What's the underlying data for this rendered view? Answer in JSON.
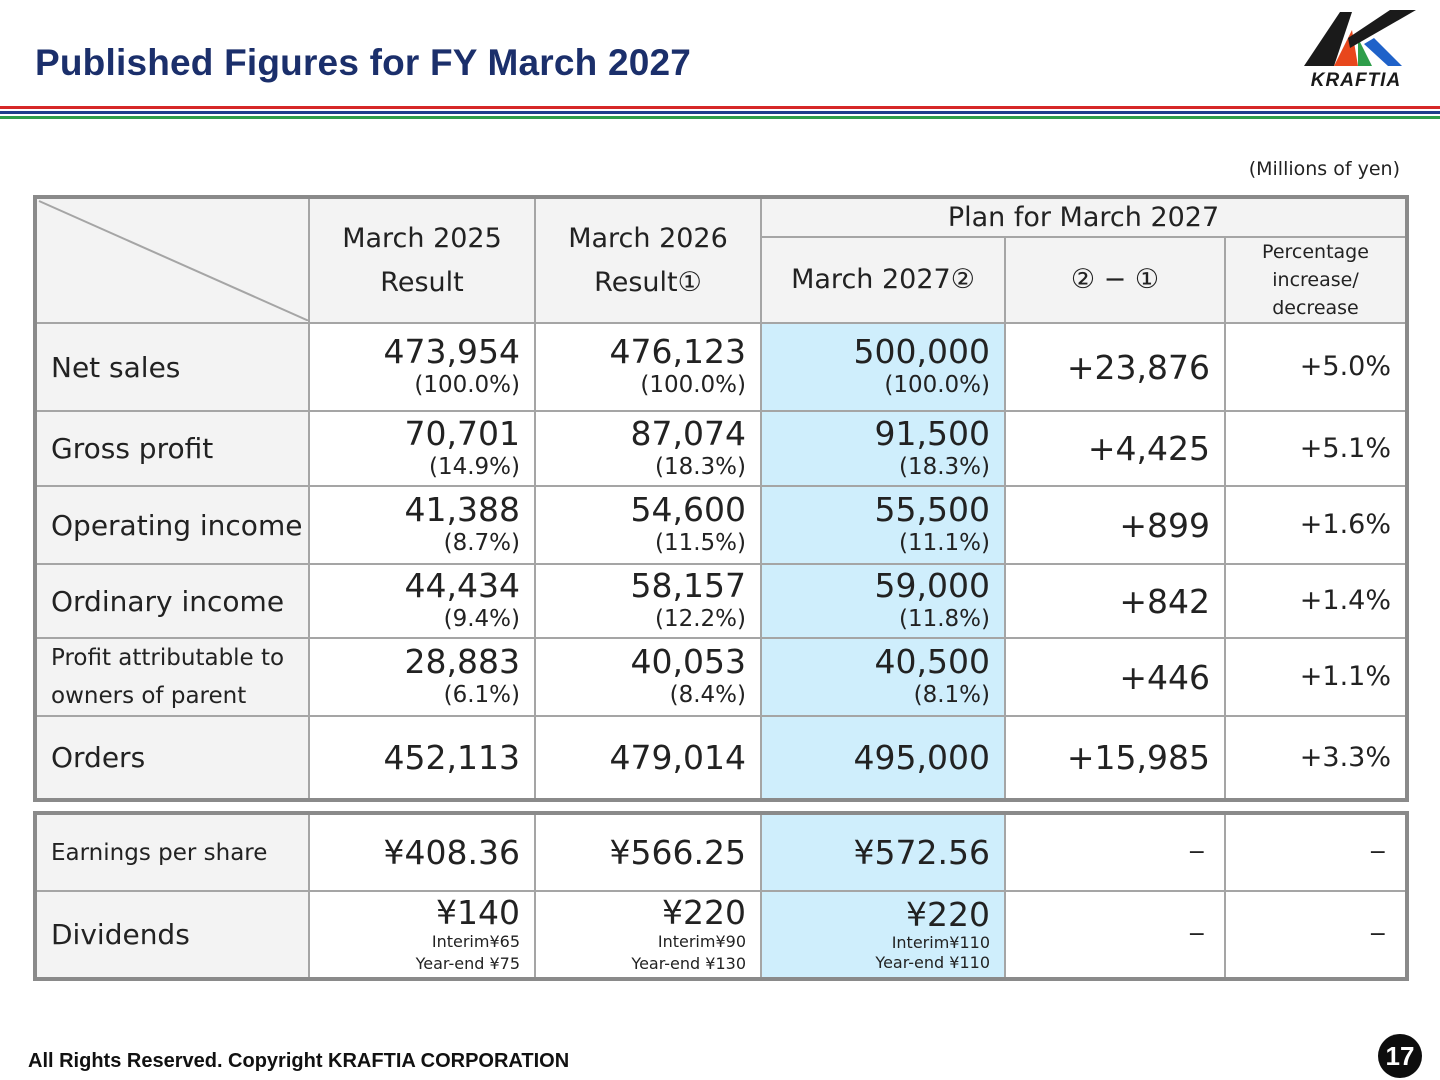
{
  "header": {
    "title": "Published Figures for FY March 2027",
    "logo_text": "KRAFTIA",
    "stripe_colors": [
      "#d62828",
      "#1f3f8c",
      "#2e9e4a"
    ]
  },
  "unit_note": "(Millions of yen)",
  "columns": {
    "col1": {
      "line1": "March 2025",
      "line2": "Result"
    },
    "col2": {
      "line1": "March 2026",
      "line2": "Result①"
    },
    "plan_group": "Plan for March 2027",
    "col3": "March 2027②",
    "col4": "② − ①",
    "col5": {
      "line1": "Percentage",
      "line2": "increase/",
      "line3": "decrease"
    }
  },
  "rows": [
    {
      "label": "Net sales",
      "r2025": "473,954",
      "p2025": "(100.0%)",
      "r2026": "476,123",
      "p2026": "(100.0%)",
      "r2027": "500,000",
      "p2027": "(100.0%)",
      "diff": "+23,876",
      "pct": "+5.0%"
    },
    {
      "label": "Gross profit",
      "r2025": "70,701",
      "p2025": "(14.9%)",
      "r2026": "87,074",
      "p2026": "(18.3%)",
      "r2027": "91,500",
      "p2027": "(18.3%)",
      "diff": "+4,425",
      "pct": "+5.1%"
    },
    {
      "label": "Operating income",
      "r2025": "41,388",
      "p2025": "(8.7%)",
      "r2026": "54,600",
      "p2026": "(11.5%)",
      "r2027": "55,500",
      "p2027": "(11.1%)",
      "diff": "+899",
      "pct": "+1.6%"
    },
    {
      "label": "Ordinary income",
      "r2025": "44,434",
      "p2025": "(9.4%)",
      "r2026": "58,157",
      "p2026": "(12.2%)",
      "r2027": "59,000",
      "p2027": "(11.8%)",
      "diff": "+842",
      "pct": "+1.4%"
    },
    {
      "label_line1": "Profit attributable to",
      "label_line2": "owners of parent",
      "r2025": "28,883",
      "p2025": "(6.1%)",
      "r2026": "40,053",
      "p2026": "(8.4%)",
      "r2027": "40,500",
      "p2027": "(8.1%)",
      "diff": "+446",
      "pct": "+1.1%"
    },
    {
      "label": "Orders",
      "r2025": "452,113",
      "r2026": "479,014",
      "r2027": "495,000",
      "diff": "+15,985",
      "pct": "+3.3%"
    }
  ],
  "per_share": {
    "eps": {
      "label": "Earnings per share",
      "r2025": "¥408.36",
      "r2026": "¥566.25",
      "r2027": "¥572.56",
      "diff": "−",
      "pct": "−"
    },
    "dividends": {
      "label": "Dividends",
      "r2025": {
        "total": "¥140",
        "interim": "Interim¥65",
        "yearend": "Year-end ¥75"
      },
      "r2026": {
        "total": "¥220",
        "interim": "Interim¥90",
        "yearend": "Year-end ¥130"
      },
      "r2027": {
        "total": "¥220",
        "interim": "Interim¥110",
        "yearend": "Year-end ¥110"
      },
      "diff": "−",
      "pct": "−"
    }
  },
  "footer": {
    "copyright": "All Rights Reserved. Copyright KRAFTIA CORPORATION",
    "page_number": "17"
  }
}
